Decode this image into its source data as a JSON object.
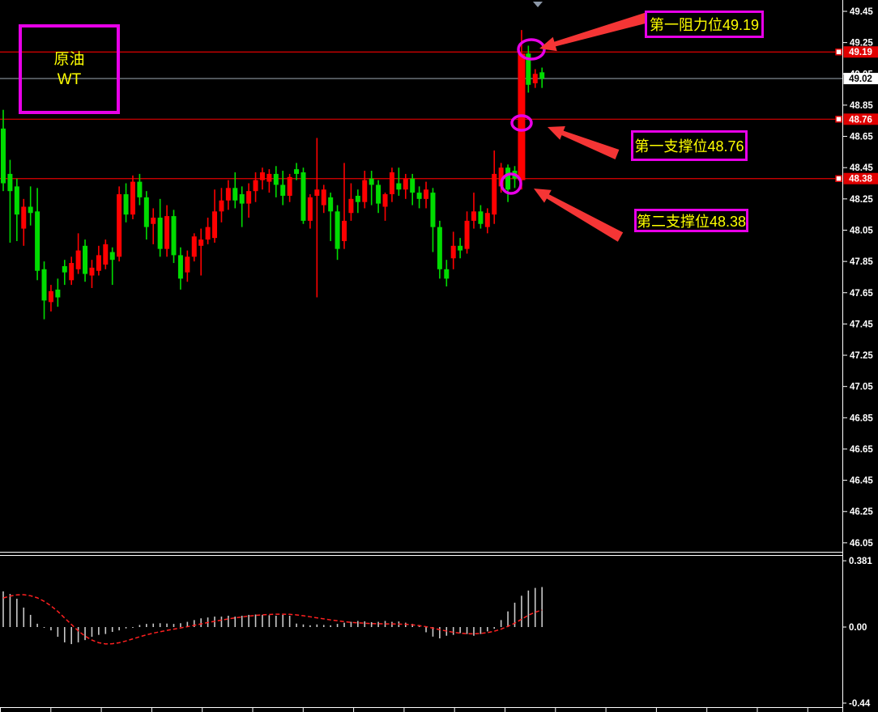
{
  "instrument": {
    "line1": "原油",
    "line2": "WT"
  },
  "colors": {
    "background": "#000000",
    "up_candle": "#FF0000",
    "down_candle": "#00DC00",
    "level_line": "#E00000",
    "current_line": "#8C96A0",
    "annotation": "#E800E8",
    "annotation_text": "#FFFF00",
    "axis_text": "#FFFFFF",
    "tag_up_bg": "#E00000",
    "tag_current_bg": "#FFFFFF",
    "histogram": "#C8C8C8",
    "signal_line": "#FF2020",
    "arrow": "#F53535",
    "marker": "#8C98A8"
  },
  "chart_data": {
    "type": "candlestick",
    "title": "原油 WT",
    "legend_position": "none",
    "grid": false,
    "price_axis": {
      "min": 46.05,
      "max": 49.45,
      "tick_step": 0.2,
      "ticks": [
        "49.45",
        "49.25",
        "49.05",
        "48.85",
        "48.65",
        "48.45",
        "48.25",
        "48.05",
        "47.85",
        "47.65",
        "47.45",
        "47.25",
        "47.05",
        "46.85",
        "46.65",
        "46.45",
        "46.25",
        "46.05"
      ]
    },
    "levels": [
      {
        "id": "resistance1",
        "label": "第一阻力位49.19",
        "price": 49.19,
        "tag": "49.19"
      },
      {
        "id": "support1",
        "label": "第一支撑位48.76",
        "price": 48.76,
        "tag": "48.76"
      },
      {
        "id": "support2",
        "label": "第二支撑位48.38",
        "price": 48.38,
        "tag": "48.38"
      }
    ],
    "current_price": {
      "value": 49.02,
      "tag": "49.02"
    },
    "candles": [
      [
        48.7,
        48.82,
        48.3,
        48.35
      ],
      [
        48.41,
        48.5,
        47.97,
        48.3
      ],
      [
        48.33,
        48.38,
        47.98,
        48.15
      ],
      [
        48.06,
        48.25,
        47.95,
        48.2
      ],
      [
        48.2,
        48.33,
        48.08,
        48.16
      ],
      [
        48.17,
        48.32,
        47.73,
        47.79
      ],
      [
        47.8,
        47.85,
        47.48,
        47.6
      ],
      [
        47.59,
        47.7,
        47.53,
        47.66
      ],
      [
        47.67,
        47.74,
        47.56,
        47.62
      ],
      [
        47.82,
        47.86,
        47.7,
        47.78
      ],
      [
        47.73,
        47.88,
        47.7,
        47.84
      ],
      [
        47.8,
        48.03,
        47.77,
        47.92
      ],
      [
        47.95,
        47.99,
        47.72,
        47.77
      ],
      [
        47.76,
        47.86,
        47.68,
        47.81
      ],
      [
        47.79,
        47.95,
        47.76,
        47.89
      ],
      [
        47.83,
        47.99,
        47.8,
        47.96
      ],
      [
        47.91,
        47.94,
        47.7,
        47.86
      ],
      [
        47.88,
        48.33,
        47.85,
        48.28
      ],
      [
        48.28,
        48.35,
        48.1,
        48.15
      ],
      [
        48.15,
        48.4,
        48.12,
        48.36
      ],
      [
        48.36,
        48.41,
        48.21,
        48.26
      ],
      [
        48.26,
        48.3,
        47.99,
        48.07
      ],
      [
        48.09,
        48.19,
        47.96,
        48.13
      ],
      [
        48.13,
        48.25,
        47.88,
        47.93
      ],
      [
        47.93,
        48.21,
        47.88,
        48.14
      ],
      [
        48.14,
        48.18,
        47.84,
        47.89
      ],
      [
        47.89,
        47.94,
        47.67,
        47.74
      ],
      [
        47.78,
        47.92,
        47.72,
        47.88
      ],
      [
        47.88,
        48.03,
        47.85,
        48.01
      ],
      [
        47.95,
        48.06,
        47.76,
        47.99
      ],
      [
        47.99,
        48.13,
        47.96,
        48.07
      ],
      [
        48.0,
        48.31,
        47.97,
        48.17
      ],
      [
        48.17,
        48.32,
        48.1,
        48.24
      ],
      [
        48.24,
        48.37,
        48.18,
        48.32
      ],
      [
        48.32,
        48.42,
        48.19,
        48.24
      ],
      [
        48.28,
        48.33,
        48.07,
        48.22
      ],
      [
        48.22,
        48.35,
        48.13,
        48.3
      ],
      [
        48.3,
        48.42,
        48.23,
        48.37
      ],
      [
        48.37,
        48.45,
        48.31,
        48.42
      ],
      [
        48.36,
        48.44,
        48.29,
        48.41
      ],
      [
        48.41,
        48.46,
        48.26,
        48.34
      ],
      [
        48.34,
        48.43,
        48.21,
        48.27
      ],
      [
        48.27,
        48.41,
        48.23,
        48.39
      ],
      [
        48.44,
        48.48,
        48.37,
        48.41
      ],
      [
        48.42,
        48.45,
        48.09,
        48.11
      ],
      [
        48.11,
        48.28,
        48.06,
        48.26
      ],
      [
        48.27,
        48.64,
        47.62,
        48.31
      ],
      [
        48.21,
        48.34,
        48.16,
        48.31
      ],
      [
        48.26,
        48.29,
        47.98,
        48.17
      ],
      [
        48.17,
        48.21,
        47.86,
        47.93
      ],
      [
        47.98,
        48.48,
        47.93,
        48.11
      ],
      [
        48.16,
        48.35,
        48.11,
        48.25
      ],
      [
        48.27,
        48.31,
        48.16,
        48.23
      ],
      [
        48.23,
        48.43,
        48.19,
        48.37
      ],
      [
        48.38,
        48.43,
        48.21,
        48.34
      ],
      [
        48.34,
        48.37,
        48.16,
        48.22
      ],
      [
        48.2,
        48.29,
        48.11,
        48.28
      ],
      [
        48.28,
        48.45,
        48.23,
        48.42
      ],
      [
        48.35,
        48.45,
        48.27,
        48.31
      ],
      [
        48.31,
        48.41,
        48.25,
        48.38
      ],
      [
        48.38,
        48.41,
        48.21,
        48.29
      ],
      [
        48.29,
        48.33,
        48.19,
        48.25
      ],
      [
        48.25,
        48.36,
        48.19,
        48.31
      ],
      [
        48.29,
        48.32,
        47.91,
        48.07
      ],
      [
        48.07,
        48.11,
        47.74,
        47.8
      ],
      [
        47.8,
        47.86,
        47.69,
        47.74
      ],
      [
        47.87,
        48.04,
        47.8,
        47.95
      ],
      [
        47.95,
        48.0,
        47.87,
        47.92
      ],
      [
        47.93,
        48.17,
        47.9,
        48.11
      ],
      [
        48.11,
        48.29,
        48.06,
        48.17
      ],
      [
        48.17,
        48.21,
        48.06,
        48.09
      ],
      [
        48.07,
        48.19,
        48.03,
        48.16
      ],
      [
        48.15,
        48.56,
        48.09,
        48.41
      ],
      [
        48.33,
        48.48,
        48.29,
        48.45
      ],
      [
        48.45,
        48.47,
        48.23,
        48.31
      ],
      [
        48.43,
        48.46,
        48.32,
        48.38
      ],
      [
        48.37,
        49.33,
        48.31,
        49.18
      ],
      [
        49.18,
        49.23,
        48.93,
        48.98
      ],
      [
        48.99,
        49.08,
        48.96,
        49.05
      ],
      [
        49.06,
        49.09,
        48.96,
        49.02
      ]
    ],
    "indicator": {
      "type": "macd-histogram",
      "range": [
        -0.44,
        0.381
      ],
      "axis_labels": [
        {
          "text": "0.381",
          "value": 0.381
        },
        {
          "text": "0.00",
          "value": 0
        },
        {
          "text": "-0.44",
          "value": -0.44
        }
      ],
      "histogram": [
        0.205,
        0.19,
        0.163,
        0.112,
        0.07,
        0.019,
        0.0,
        -0.019,
        -0.056,
        -0.088,
        -0.098,
        -0.088,
        -0.075,
        -0.056,
        -0.045,
        -0.04,
        -0.028,
        -0.019,
        -0.008,
        0.0,
        0.012,
        0.018,
        0.02,
        0.022,
        0.02,
        0.018,
        0.022,
        0.03,
        0.04,
        0.05,
        0.055,
        0.06,
        0.06,
        0.065,
        0.06,
        0.065,
        0.07,
        0.072,
        0.07,
        0.068,
        0.065,
        0.07,
        0.065,
        0.02,
        0.015,
        0.01,
        0.015,
        0.012,
        0.01,
        0.018,
        0.025,
        0.03,
        0.035,
        0.033,
        0.028,
        0.03,
        0.035,
        0.03,
        0.032,
        0.025,
        0.018,
        0.012,
        -0.03,
        -0.055,
        -0.065,
        -0.05,
        -0.045,
        -0.035,
        -0.04,
        -0.05,
        -0.04,
        -0.025,
        -0.01,
        0.04,
        0.09,
        0.14,
        0.18,
        0.21,
        0.225,
        0.23
      ],
      "signal": [
        0.167,
        0.178,
        0.185,
        0.186,
        0.18,
        0.168,
        0.148,
        0.122,
        0.09,
        0.052,
        0.015,
        -0.022,
        -0.052,
        -0.075,
        -0.09,
        -0.097,
        -0.096,
        -0.09,
        -0.08,
        -0.068,
        -0.056,
        -0.045,
        -0.035,
        -0.027,
        -0.019,
        -0.012,
        -0.005,
        0.002,
        0.01,
        0.018,
        0.026,
        0.033,
        0.04,
        0.047,
        0.053,
        0.058,
        0.063,
        0.067,
        0.07,
        0.072,
        0.074,
        0.074,
        0.073,
        0.07,
        0.065,
        0.059,
        0.053,
        0.047,
        0.041,
        0.036,
        0.031,
        0.027,
        0.024,
        0.022,
        0.02,
        0.019,
        0.018,
        0.018,
        0.017,
        0.016,
        0.013,
        0.008,
        0.002,
        -0.006,
        -0.015,
        -0.023,
        -0.03,
        -0.035,
        -0.038,
        -0.039,
        -0.037,
        -0.032,
        -0.024,
        -0.012,
        0.004,
        0.022,
        0.045,
        0.068,
        0.085,
        0.098
      ]
    }
  }
}
